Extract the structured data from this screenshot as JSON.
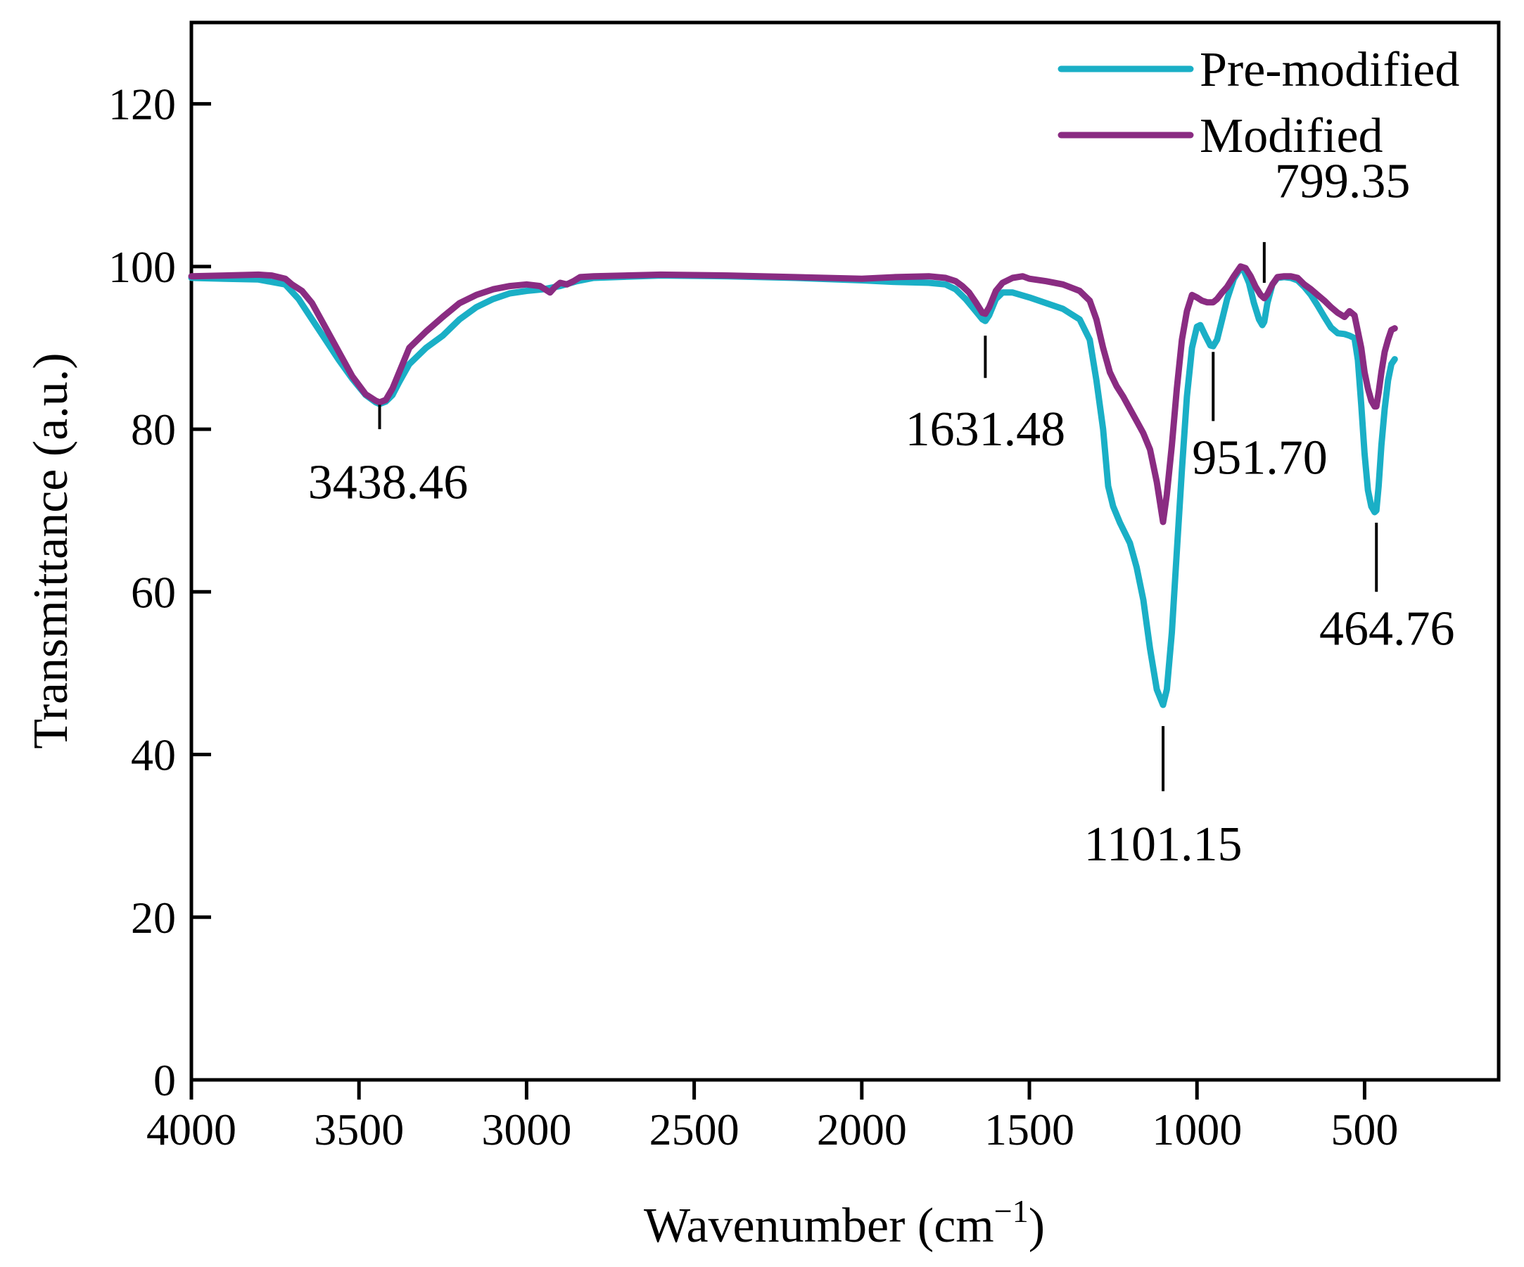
{
  "chart_data": {
    "type": "line",
    "xlabel": "Wavenumber (cm",
    "xlabel_sup": "−1",
    "xlabel_close": ")",
    "ylabel": "Transmittance (a.u.)",
    "xlim": [
      4000,
      100
    ],
    "ylim": [
      0,
      130
    ],
    "x_ticks": [
      4000,
      3500,
      3000,
      2500,
      2000,
      1500,
      1000,
      500
    ],
    "x_tick_labels": [
      "4000",
      "3500",
      "3000",
      "2500",
      "2000",
      "1500",
      "1000",
      "500"
    ],
    "y_ticks": [
      0,
      20,
      40,
      60,
      80,
      100,
      120
    ],
    "y_tick_labels": [
      "0",
      "20",
      "40",
      "60",
      "80",
      "100",
      "120"
    ],
    "legend_position": "top-right",
    "grid": false,
    "series": [
      {
        "name": "Pre-modified",
        "color": "#1aafc6",
        "points": [
          [
            4000,
            98.6
          ],
          [
            3900,
            98.5
          ],
          [
            3800,
            98.4
          ],
          [
            3720,
            97.8
          ],
          [
            3680,
            96
          ],
          [
            3640,
            93.5
          ],
          [
            3600,
            91
          ],
          [
            3560,
            88.5
          ],
          [
            3520,
            86.2
          ],
          [
            3480,
            84.2
          ],
          [
            3450,
            83.3
          ],
          [
            3438.46,
            83.1
          ],
          [
            3420,
            83.4
          ],
          [
            3400,
            84.2
          ],
          [
            3380,
            85.8
          ],
          [
            3350,
            88
          ],
          [
            3300,
            90
          ],
          [
            3250,
            91.5
          ],
          [
            3200,
            93.5
          ],
          [
            3150,
            95
          ],
          [
            3100,
            96
          ],
          [
            3050,
            96.7
          ],
          [
            3000,
            97
          ],
          [
            2950,
            97.2
          ],
          [
            2900,
            97.6
          ],
          [
            2850,
            98.2
          ],
          [
            2800,
            98.6
          ],
          [
            2600,
            98.9
          ],
          [
            2400,
            98.8
          ],
          [
            2200,
            98.6
          ],
          [
            2000,
            98.3
          ],
          [
            1900,
            98.1
          ],
          [
            1800,
            98
          ],
          [
            1750,
            97.8
          ],
          [
            1720,
            97.2
          ],
          [
            1690,
            96
          ],
          [
            1660,
            94.5
          ],
          [
            1640,
            93.5
          ],
          [
            1631.48,
            93.3
          ],
          [
            1620,
            94
          ],
          [
            1600,
            96
          ],
          [
            1580,
            96.8
          ],
          [
            1550,
            96.8
          ],
          [
            1500,
            96.2
          ],
          [
            1450,
            95.5
          ],
          [
            1400,
            94.8
          ],
          [
            1350,
            93.5
          ],
          [
            1320,
            91
          ],
          [
            1300,
            86
          ],
          [
            1280,
            80
          ],
          [
            1265,
            73
          ],
          [
            1250,
            70.5
          ],
          [
            1230,
            68.5
          ],
          [
            1200,
            66
          ],
          [
            1180,
            63
          ],
          [
            1160,
            59
          ],
          [
            1140,
            53
          ],
          [
            1120,
            48
          ],
          [
            1101.15,
            46.1
          ],
          [
            1090,
            48
          ],
          [
            1075,
            55
          ],
          [
            1060,
            65
          ],
          [
            1045,
            75
          ],
          [
            1030,
            84
          ],
          [
            1015,
            90
          ],
          [
            1000,
            92.6
          ],
          [
            990,
            92.8
          ],
          [
            975,
            91.5
          ],
          [
            960,
            90.3
          ],
          [
            951.7,
            90.2
          ],
          [
            940,
            91
          ],
          [
            925,
            93.5
          ],
          [
            910,
            96
          ],
          [
            890,
            98.5
          ],
          [
            870,
            99.8
          ],
          [
            860,
            99.5
          ],
          [
            845,
            98
          ],
          [
            830,
            95.5
          ],
          [
            815,
            93.5
          ],
          [
            805,
            92.8
          ],
          [
            799.35,
            93.2
          ],
          [
            790,
            95.5
          ],
          [
            775,
            97.8
          ],
          [
            760,
            98.6
          ],
          [
            740,
            98.7
          ],
          [
            720,
            98.6
          ],
          [
            700,
            98.3
          ],
          [
            680,
            97.5
          ],
          [
            660,
            96.5
          ],
          [
            640,
            95.2
          ],
          [
            620,
            93.8
          ],
          [
            600,
            92.5
          ],
          [
            580,
            91.8
          ],
          [
            560,
            91.7
          ],
          [
            545,
            91.5
          ],
          [
            530,
            91.2
          ],
          [
            520,
            88.5
          ],
          [
            510,
            83
          ],
          [
            500,
            77
          ],
          [
            490,
            72.5
          ],
          [
            480,
            70.5
          ],
          [
            470,
            69.8
          ],
          [
            464.76,
            70
          ],
          [
            458,
            73
          ],
          [
            450,
            78
          ],
          [
            440,
            82.5
          ],
          [
            430,
            86
          ],
          [
            420,
            88
          ],
          [
            410,
            88.6
          ]
        ]
      },
      {
        "name": "Modified",
        "color": "#8a2c82",
        "points": [
          [
            4000,
            98.8
          ],
          [
            3900,
            98.9
          ],
          [
            3800,
            99
          ],
          [
            3760,
            98.9
          ],
          [
            3720,
            98.5
          ],
          [
            3700,
            97.8
          ],
          [
            3670,
            97
          ],
          [
            3640,
            95.5
          ],
          [
            3600,
            92.5
          ],
          [
            3560,
            89.5
          ],
          [
            3520,
            86.5
          ],
          [
            3480,
            84.3
          ],
          [
            3450,
            83.5
          ],
          [
            3438.46,
            83.3
          ],
          [
            3420,
            83.6
          ],
          [
            3400,
            85
          ],
          [
            3380,
            87
          ],
          [
            3350,
            90
          ],
          [
            3300,
            92
          ],
          [
            3250,
            93.8
          ],
          [
            3200,
            95.5
          ],
          [
            3150,
            96.5
          ],
          [
            3100,
            97.2
          ],
          [
            3050,
            97.6
          ],
          [
            3000,
            97.8
          ],
          [
            2960,
            97.6
          ],
          [
            2930,
            96.8
          ],
          [
            2915,
            97.5
          ],
          [
            2900,
            98
          ],
          [
            2880,
            97.8
          ],
          [
            2860,
            98.2
          ],
          [
            2840,
            98.7
          ],
          [
            2800,
            98.8
          ],
          [
            2600,
            99
          ],
          [
            2400,
            98.9
          ],
          [
            2200,
            98.7
          ],
          [
            2000,
            98.5
          ],
          [
            1900,
            98.7
          ],
          [
            1800,
            98.8
          ],
          [
            1750,
            98.6
          ],
          [
            1720,
            98.2
          ],
          [
            1700,
            97.6
          ],
          [
            1680,
            96.8
          ],
          [
            1660,
            95.6
          ],
          [
            1640,
            94.3
          ],
          [
            1631.48,
            94.2
          ],
          [
            1620,
            95
          ],
          [
            1600,
            97
          ],
          [
            1580,
            98
          ],
          [
            1550,
            98.6
          ],
          [
            1520,
            98.8
          ],
          [
            1500,
            98.5
          ],
          [
            1450,
            98.2
          ],
          [
            1400,
            97.8
          ],
          [
            1350,
            97
          ],
          [
            1320,
            95.8
          ],
          [
            1300,
            93.5
          ],
          [
            1280,
            90
          ],
          [
            1260,
            87
          ],
          [
            1240,
            85.3
          ],
          [
            1220,
            84
          ],
          [
            1200,
            82.5
          ],
          [
            1180,
            81
          ],
          [
            1160,
            79.5
          ],
          [
            1140,
            77.5
          ],
          [
            1120,
            73.5
          ],
          [
            1101.15,
            68.6
          ],
          [
            1090,
            72
          ],
          [
            1075,
            78
          ],
          [
            1060,
            85
          ],
          [
            1045,
            91
          ],
          [
            1030,
            94.5
          ],
          [
            1015,
            96.5
          ],
          [
            1000,
            96.2
          ],
          [
            985,
            95.8
          ],
          [
            970,
            95.6
          ],
          [
            951.7,
            95.6
          ],
          [
            940,
            96
          ],
          [
            925,
            96.8
          ],
          [
            910,
            97.5
          ],
          [
            890,
            98.8
          ],
          [
            870,
            100
          ],
          [
            855,
            99.8
          ],
          [
            840,
            98.8
          ],
          [
            825,
            97.5
          ],
          [
            810,
            96.5
          ],
          [
            799.35,
            96.1
          ],
          [
            790,
            96.6
          ],
          [
            775,
            97.8
          ],
          [
            760,
            98.7
          ],
          [
            740,
            98.8
          ],
          [
            720,
            98.8
          ],
          [
            700,
            98.6
          ],
          [
            680,
            97.8
          ],
          [
            660,
            97.2
          ],
          [
            640,
            96.5
          ],
          [
            620,
            95.8
          ],
          [
            600,
            95
          ],
          [
            580,
            94.3
          ],
          [
            560,
            93.8
          ],
          [
            545,
            94.5
          ],
          [
            530,
            94
          ],
          [
            520,
            92
          ],
          [
            510,
            90
          ],
          [
            500,
            87
          ],
          [
            490,
            85
          ],
          [
            480,
            83.5
          ],
          [
            470,
            82.8
          ],
          [
            464.76,
            82.8
          ],
          [
            458,
            84.5
          ],
          [
            450,
            87
          ],
          [
            440,
            89.5
          ],
          [
            430,
            91
          ],
          [
            420,
            92.2
          ],
          [
            410,
            92.4
          ]
        ]
      }
    ],
    "peak_annotations": [
      {
        "label": "3438.46",
        "x": 3438.46,
        "line_y": [
          80,
          83
        ],
        "text_y": 71.5,
        "anchor": "middle",
        "x_offset": 12
      },
      {
        "label": "1631.48",
        "x": 1631.48,
        "line_y": [
          86.3,
          91.5
        ],
        "text_y": 78,
        "anchor": "middle",
        "x_offset": 0
      },
      {
        "label": "1101.15",
        "x": 1101.15,
        "line_y": [
          35.5,
          43.5
        ],
        "text_y": 27,
        "anchor": "middle",
        "x_offset": 0
      },
      {
        "label": "951.70",
        "x": 951.7,
        "line_y": [
          81,
          89.5
        ],
        "text_y": 74.5,
        "anchor": "start",
        "x_offset": -30
      },
      {
        "label": "799.35",
        "x": 799.35,
        "line_y": [
          98,
          103
        ],
        "text_y": 108.5,
        "anchor": "start",
        "x_offset": 15
      },
      {
        "label": "464.76",
        "x": 464.76,
        "line_y": [
          60,
          68.5
        ],
        "text_y": 53.5,
        "anchor": "middle",
        "x_offset": 15
      }
    ]
  }
}
